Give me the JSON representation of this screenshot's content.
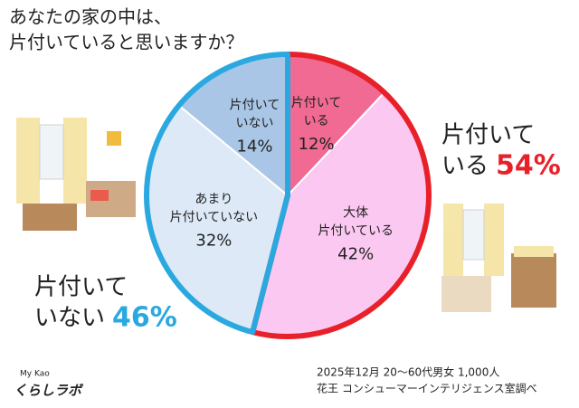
{
  "chart_data": {
    "type": "pie",
    "title": [
      "あなたの家の中は、",
      "片付いていると思いますか？"
    ],
    "categories": [
      [
        "片付いて",
        "いる"
      ],
      [
        "大体",
        "片付いている"
      ],
      [
        "あまり",
        "片付いていない"
      ],
      [
        "片付いて",
        "いない"
      ]
    ],
    "values": [
      12,
      42,
      32,
      14
    ],
    "value_labels": [
      "12%",
      "42%",
      "32%",
      "14%"
    ],
    "colors": [
      "#f06a93",
      "#fac8f0",
      "#dde9f7",
      "#a9c6e6"
    ],
    "groups": [
      {
        "label": [
          "片付いて",
          "いる"
        ],
        "value": 54,
        "value_label": "54%",
        "color": "#e8202a",
        "slices": [
          0,
          1
        ]
      },
      {
        "label": [
          "片付いて",
          "いない"
        ],
        "value": 46,
        "value_label": "46%",
        "color": "#2aa8e0",
        "slices": [
          2,
          3
        ]
      }
    ],
    "source": [
      "2025年12月 20～60代男女 1,000人",
      "花王 コンシューマーインテリジェンス室調べ"
    ],
    "logo": [
      "My Kao",
      "くらしラボ"
    ]
  }
}
